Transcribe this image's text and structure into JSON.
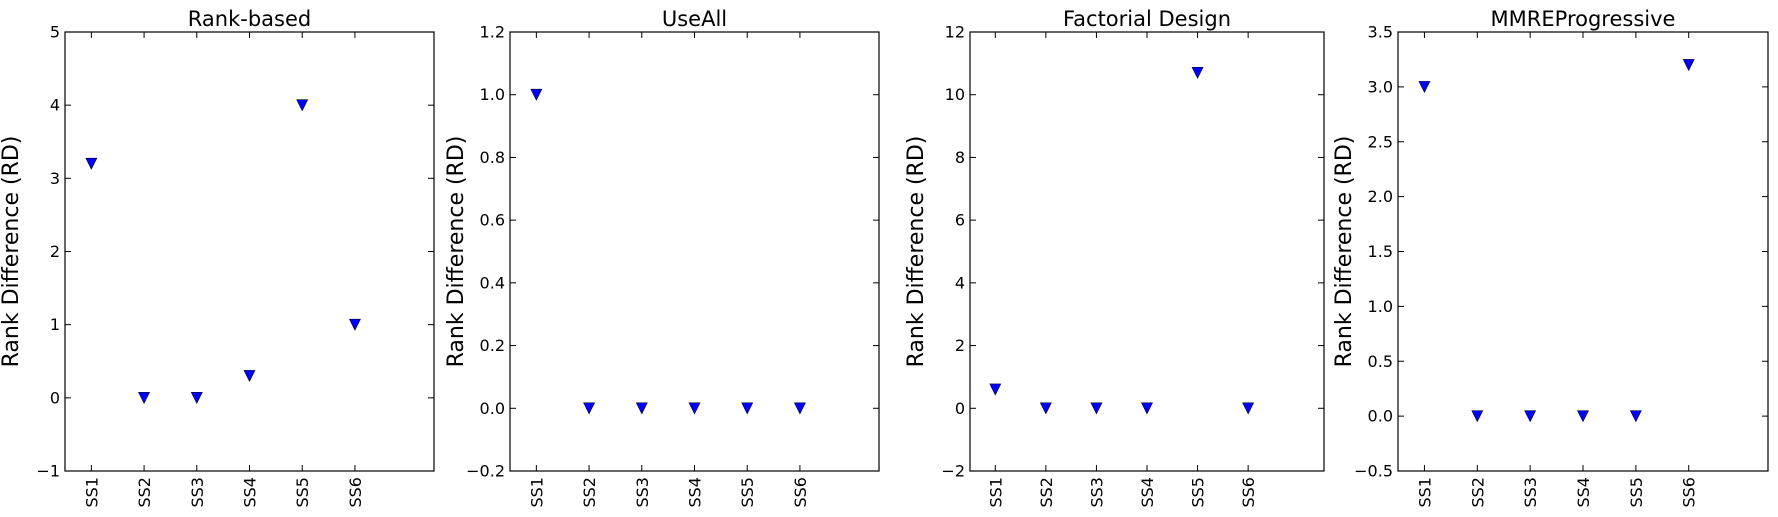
{
  "chart_data": [
    {
      "type": "scatter",
      "title": "Rank-based",
      "xlabel": "",
      "ylabel": "Rank Difference (RD)",
      "categories": [
        "SS1",
        "SS2",
        "SS3",
        "SS4",
        "SS5",
        "SS6"
      ],
      "values": [
        3.2,
        0,
        0,
        0.3,
        4,
        1
      ],
      "ylim": [
        -1,
        5
      ],
      "yticks": [
        -1,
        0,
        1,
        2,
        3,
        4,
        5
      ],
      "ytick_labels": [
        "−1",
        "0",
        "1",
        "2",
        "3",
        "4",
        "5"
      ],
      "marker": "triangle-down",
      "color": "#0000ff",
      "grid": false
    },
    {
      "type": "scatter",
      "title": "UseAll",
      "xlabel": "",
      "ylabel": "Rank Difference (RD)",
      "categories": [
        "SS1",
        "SS2",
        "SS3",
        "SS4",
        "SS5",
        "SS6"
      ],
      "values": [
        1.0,
        0,
        0,
        0,
        0,
        0
      ],
      "ylim": [
        -0.2,
        1.2
      ],
      "yticks": [
        -0.2,
        0,
        0.2,
        0.4,
        0.6,
        0.8,
        1.0,
        1.2
      ],
      "ytick_labels": [
        "−0.2",
        "0.0",
        "0.2",
        "0.4",
        "0.6",
        "0.8",
        "1.0",
        "1.2"
      ],
      "marker": "triangle-down",
      "color": "#0000ff",
      "grid": false
    },
    {
      "type": "scatter",
      "title": "Factorial Design",
      "xlabel": "",
      "ylabel": "Rank Difference (RD)",
      "categories": [
        "SS1",
        "SS2",
        "SS3",
        "SS4",
        "SS5",
        "SS6"
      ],
      "values": [
        0.6,
        0,
        0,
        0,
        10.7,
        0
      ],
      "ylim": [
        -2,
        12
      ],
      "yticks": [
        -2,
        0,
        2,
        4,
        6,
        8,
        10,
        12
      ],
      "ytick_labels": [
        "−2",
        "0",
        "2",
        "4",
        "6",
        "8",
        "10",
        "12"
      ],
      "marker": "triangle-down",
      "color": "#0000ff",
      "grid": false
    },
    {
      "type": "scatter",
      "title": "MMREProgressive",
      "xlabel": "",
      "ylabel": "Rank Difference (RD)",
      "categories": [
        "SS1",
        "SS2",
        "SS3",
        "SS4",
        "SS5",
        "SS6"
      ],
      "values": [
        3.0,
        0,
        0,
        0,
        0,
        3.2
      ],
      "ylim": [
        -0.5,
        3.5
      ],
      "yticks": [
        -0.5,
        0,
        0.5,
        1.0,
        1.5,
        2.0,
        2.5,
        3.0,
        3.5
      ],
      "ytick_labels": [
        "−0.5",
        "0.0",
        "0.5",
        "1.0",
        "1.5",
        "2.0",
        "2.5",
        "3.0",
        "3.5"
      ],
      "marker": "triangle-down",
      "color": "#0000ff",
      "grid": false
    }
  ]
}
